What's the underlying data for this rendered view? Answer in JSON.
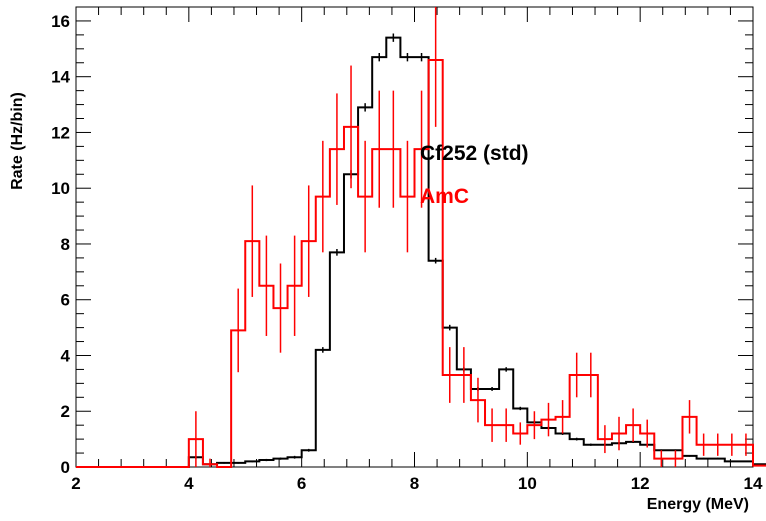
{
  "chart_data": {
    "type": "line",
    "xlabel": "Energy (MeV)",
    "ylabel": "Rate (Hz/bin)",
    "xlim": [
      2,
      14
    ],
    "ylim": [
      0,
      16.5
    ],
    "x_ticks": [
      "2",
      "4",
      "6",
      "8",
      "10",
      "12",
      "14"
    ],
    "y_ticks": [
      "0",
      "2",
      "4",
      "6",
      "8",
      "10",
      "12",
      "14",
      "16"
    ],
    "grid": false,
    "legend_placement": "right",
    "bin_edges_start": 2,
    "bin_width": 0.25,
    "series": [
      {
        "name": "Cf252 (std)",
        "color": "#000000",
        "style": "histogram",
        "values": [
          0,
          0,
          0,
          0,
          0,
          0,
          0,
          0,
          0.35,
          0.1,
          0.15,
          0.15,
          0.2,
          0.25,
          0.3,
          0.35,
          0.6,
          4.2,
          7.7,
          10.5,
          12.9,
          14.7,
          15.4,
          14.7,
          14.7,
          7.4,
          5.0,
          3.5,
          2.8,
          2.8,
          3.5,
          2.1,
          1.6,
          1.4,
          1.2,
          1.0,
          0.8,
          0.8,
          0.85,
          0.9,
          0.8,
          0.6,
          0.6,
          0.4,
          0.3,
          0.3,
          0.2,
          0.2,
          0.1,
          0.05,
          0.05,
          0.05,
          0.05,
          0.05,
          0.05,
          0.05,
          0.05,
          0.05,
          0.05,
          0.05,
          0.05,
          0.05,
          0.05,
          0.05,
          0.05,
          0.05,
          0.05,
          0.05
        ],
        "errors": [
          0,
          0,
          0,
          0,
          0,
          0,
          0,
          0,
          0.05,
          0.03,
          0.03,
          0.03,
          0.03,
          0.04,
          0.04,
          0.05,
          0.05,
          0.1,
          0.12,
          0.15,
          0.15,
          0.15,
          0.15,
          0.15,
          0.15,
          0.1,
          0.1,
          0.08,
          0.07,
          0.07,
          0.08,
          0.06,
          0.06,
          0.05,
          0.05,
          0.05,
          0.04,
          0.04,
          0.04,
          0.04,
          0.04,
          0.03,
          0.03,
          0.03,
          0.03,
          0.03,
          0.02,
          0.02,
          0.02,
          0.01,
          0.01,
          0.01,
          0.01,
          0.01,
          0.01,
          0.01,
          0.01,
          0.01,
          0.01,
          0.01,
          0.01,
          0.01,
          0.01,
          0.01,
          0.01,
          0.01,
          0.01,
          0.01
        ]
      },
      {
        "name": "AmC",
        "color": "#ff0000",
        "style": "histogram",
        "values": [
          0,
          0,
          0,
          0,
          0,
          0,
          0,
          0,
          1.0,
          0.1,
          0,
          4.9,
          8.1,
          6.5,
          5.7,
          6.5,
          8.1,
          9.7,
          11.4,
          12.2,
          9.7,
          11.4,
          11.4,
          9.7,
          11.4,
          14.6,
          3.3,
          3.3,
          2.4,
          1.5,
          1.5,
          1.2,
          1.5,
          1.7,
          1.8,
          3.3,
          3.3,
          1.0,
          1.2,
          1.5,
          1.2,
          0.3,
          0.3,
          1.8,
          0.8,
          0.8,
          0.8,
          0.8,
          0.05,
          0.05,
          0.05,
          0.05,
          0.05,
          0.05,
          0.05,
          0.05,
          0.05,
          0.05,
          0.05,
          0.05,
          0.05,
          0.05,
          0.05,
          0.05,
          0.05,
          0.05,
          0.05
        ],
        "errors": [
          0,
          0,
          0,
          0,
          0,
          0,
          0,
          0,
          1.0,
          0.2,
          0,
          1.5,
          2.0,
          1.8,
          1.6,
          1.8,
          2.0,
          2.0,
          2.0,
          2.2,
          2.0,
          2.1,
          2.1,
          2.0,
          2.1,
          2.4,
          1.0,
          1.0,
          0.8,
          0.6,
          0.6,
          0.4,
          0.5,
          0.6,
          0.6,
          0.8,
          0.8,
          0.5,
          0.6,
          0.6,
          0.5,
          0.3,
          0.3,
          0.6,
          0.4,
          0.4,
          0.4,
          0.4,
          0,
          0,
          0,
          0,
          0,
          0,
          0,
          0,
          0,
          0,
          0,
          0,
          0,
          0,
          0,
          0,
          0,
          0,
          0
        ]
      }
    ]
  }
}
